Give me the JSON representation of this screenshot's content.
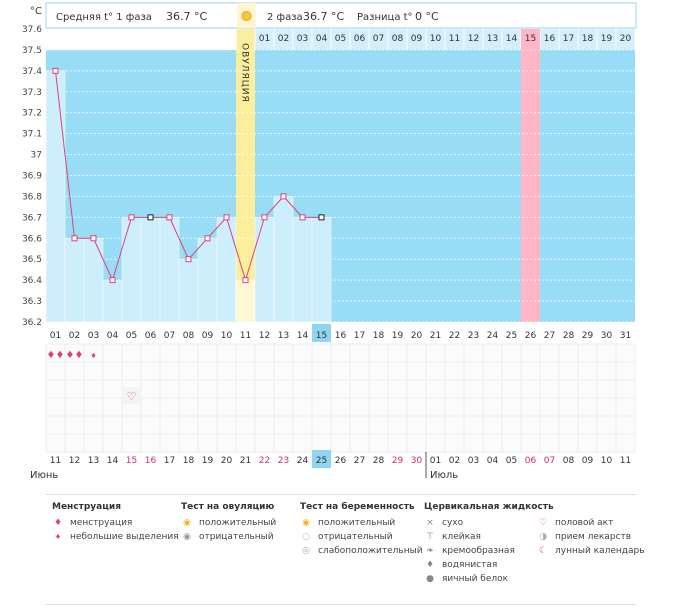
{
  "header": {
    "unit": "°C",
    "phase1_label": "Средняя t° 1 фаза",
    "phase1_value": "36.7 °C",
    "phase2_label": "2 фаза",
    "phase2_value": "36.7 °C",
    "diff_label": "Разница t°",
    "diff_value": "0 °C"
  },
  "colors": {
    "background": "#99dcf6",
    "fill": "#cdeefc",
    "line": "#e0407a",
    "ovulation": "#fbee9c",
    "highlight": "#ffb7c7",
    "accent_day": "#8fd4f0",
    "red_date": "#d92a5a"
  },
  "chart_data": {
    "type": "line",
    "title": "",
    "ylabel": "°C",
    "ylim": [
      36.2,
      37.6
    ],
    "yticks": [
      "37.6",
      "37.5",
      "37.4",
      "37.3",
      "37.2",
      "37.1",
      "37",
      "36.9",
      "36.8",
      "36.7",
      "36.6",
      "36.5",
      "36.4",
      "36.3",
      "36.2"
    ],
    "ovulation_label": "ОВУЛЯЦИЯ",
    "ovulation_day_index": 10,
    "cycle_days": [
      "01",
      "02",
      "03",
      "04",
      "05",
      "06",
      "07",
      "08",
      "09",
      "10",
      "11",
      "12",
      "13",
      "14",
      "15",
      "16",
      "17",
      "18",
      "19",
      "20",
      "21",
      "22",
      "23",
      "24",
      "25",
      "26",
      "27",
      "28",
      "29",
      "30",
      "31"
    ],
    "top_days": [
      "01",
      "02",
      "03",
      "04",
      "05",
      "06",
      "07",
      "08",
      "09",
      "10",
      "11",
      "12",
      "13",
      "14",
      "15",
      "16",
      "17",
      "18",
      "19",
      "20"
    ],
    "highlight_top_index": 14,
    "current_day_index": 14,
    "pink_column_index": 25,
    "temperatures": [
      37.4,
      36.6,
      36.6,
      36.4,
      36.7,
      36.7,
      36.7,
      36.5,
      36.6,
      36.7,
      36.4,
      36.7,
      36.8,
      36.7,
      36.7
    ],
    "black_marker_indices": [
      5,
      14
    ],
    "dates": [
      "11",
      "12",
      "13",
      "14",
      "15",
      "16",
      "17",
      "18",
      "19",
      "20",
      "21",
      "22",
      "23",
      "24",
      "25",
      "26",
      "27",
      "28",
      "29",
      "30",
      "01",
      "02",
      "03",
      "04",
      "05",
      "06",
      "07",
      "08",
      "09",
      "10",
      "11"
    ],
    "red_date_indices": [
      4,
      5,
      11,
      12,
      18,
      19,
      25,
      26
    ],
    "current_date_index": 14,
    "months": [
      "Июнь",
      "Июль"
    ],
    "month_split_index": 20,
    "menstruation_marks": [
      {
        "day": 0,
        "kind": "menstruation",
        "count": 2
      },
      {
        "day": 1,
        "kind": "menstruation",
        "count": 2
      },
      {
        "day": 2,
        "kind": "spotting",
        "count": 1
      }
    ],
    "intercourse_days": [
      4
    ]
  },
  "legend": {
    "menstruation": {
      "title": "Менструация",
      "items": [
        {
          "icon": "blood-drops-icon",
          "label": "менструация"
        },
        {
          "icon": "blood-drop-small-icon",
          "label": "небольшие выделения"
        }
      ]
    },
    "ovulation_test": {
      "title": "Тест на овуляцию",
      "items": [
        {
          "icon": "sun-yellow-icon",
          "label": "положительный"
        },
        {
          "icon": "sun-gray-icon",
          "label": "отрицательный"
        }
      ]
    },
    "pregnancy_test": {
      "title": "Тест на беременность",
      "items": [
        {
          "icon": "sun-yellow-icon",
          "label": "положительный"
        },
        {
          "icon": "circle-white-icon",
          "label": "отрицательный"
        },
        {
          "icon": "circle-faint-icon",
          "label": "слабоположительный"
        }
      ]
    },
    "cervical": {
      "title": "Цервикальная жидкость",
      "items": [
        {
          "icon": "cross-icon",
          "label": "сухо"
        },
        {
          "icon": "sticky-icon",
          "label": "клейкая"
        },
        {
          "icon": "creamy-icon",
          "label": "кремообразная"
        },
        {
          "icon": "water-drop-icon",
          "label": "водянистая"
        },
        {
          "icon": "egg-white-icon",
          "label": "яичный белок"
        }
      ]
    },
    "other": {
      "items": [
        {
          "icon": "heart-icon",
          "label": "половой акт"
        },
        {
          "icon": "pill-icon",
          "label": "прием лекарств"
        },
        {
          "icon": "moon-icon",
          "label": "лунный календарь"
        }
      ]
    }
  }
}
